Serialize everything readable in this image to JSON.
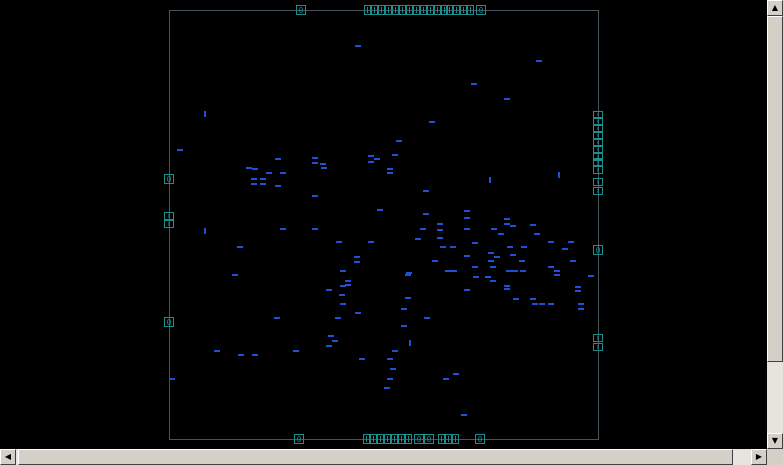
{
  "layout_view": {
    "background": "#000000",
    "boundary_color": "#44545a",
    "cell_color": "#1f50d6",
    "pin_color": "#1a8f8f",
    "pin_label": "0"
  },
  "vertical_scrollbar": {
    "position": 0.04,
    "up_icon": "arrow-up-icon",
    "down_icon": "arrow-down-icon"
  },
  "horizontal_scrollbar": {
    "position": 0.96,
    "left_icon": "arrow-left-icon",
    "right_icon": "arrow-right-icon"
  },
  "glyphs": {
    "up": "▲",
    "down": "▼",
    "left": "◀",
    "right": "▶"
  }
}
